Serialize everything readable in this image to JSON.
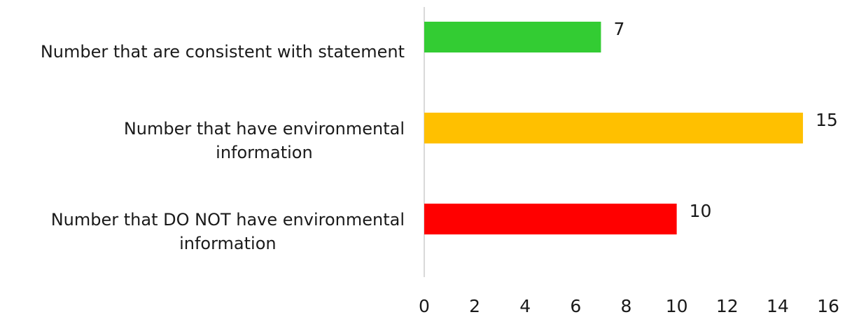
{
  "chart_data": {
    "type": "bar",
    "orientation": "horizontal",
    "categories": [
      "Number that are consistent with statement",
      "Number that have environmental information",
      "Number that DO NOT have environmental information"
    ],
    "category_lines": [
      [
        "Number that are consistent with statement"
      ],
      [
        "Number that have environmental",
        "information"
      ],
      [
        "Number that DO NOT have environmental",
        "information"
      ]
    ],
    "values": [
      7,
      15,
      10
    ],
    "data_labels": [
      "7",
      "15",
      "10"
    ],
    "colors": [
      "#33cc33",
      "#ffc000",
      "#ff0000"
    ],
    "xlim": [
      0,
      16
    ],
    "x_ticks": [
      "0",
      "2",
      "4",
      "6",
      "8",
      "10",
      "12",
      "14",
      "16"
    ],
    "grid": false,
    "legend": "none"
  }
}
